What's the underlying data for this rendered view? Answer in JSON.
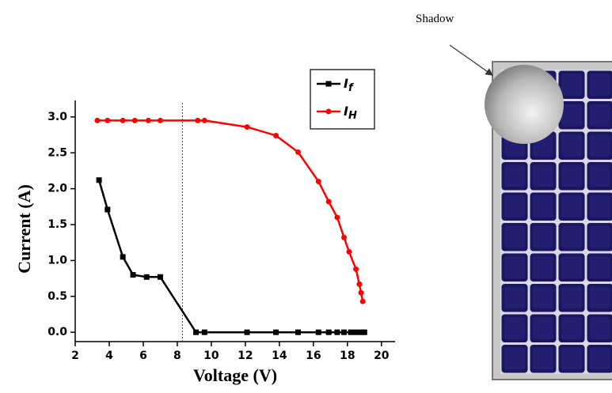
{
  "chart_data": {
    "type": "line",
    "xlabel": "Voltage (V)",
    "ylabel": "Current (A)",
    "xlim": [
      2,
      20.8
    ],
    "ylim": [
      -0.13,
      3.23
    ],
    "xticks": [
      2,
      4,
      6,
      8,
      10,
      12,
      14,
      16,
      18,
      20
    ],
    "yticks": [
      {
        "value": 0,
        "label": "0.0"
      },
      {
        "value": 0.5,
        "label": "0.5"
      },
      {
        "value": 1,
        "label": "1.0"
      },
      {
        "value": 1.5,
        "label": "1.5"
      },
      {
        "value": 2,
        "label": "2.0"
      },
      {
        "value": 2.5,
        "label": "2.5"
      },
      {
        "value": 3,
        "label": "3.0"
      }
    ],
    "reference_line_x": 8.3,
    "legend": "upper right",
    "series": [
      {
        "name": "If",
        "color": "#000000",
        "marker": "square",
        "x": [
          3.4,
          3.9,
          4.8,
          5.4,
          6.2,
          7.0,
          9.1,
          9.6,
          12.1,
          13.8,
          15.1,
          16.3,
          16.9,
          17.4,
          17.8,
          18.2,
          18.5,
          18.8,
          19.0
        ],
        "values": [
          2.12,
          1.71,
          1.05,
          0.8,
          0.77,
          0.77,
          0.0,
          0.0,
          0.0,
          0.0,
          0.0,
          0.0,
          0.0,
          0.0,
          0.0,
          0.0,
          0.0,
          0.0,
          0.0
        ]
      },
      {
        "name": "IH",
        "color": "#ff0000",
        "marker": "circle",
        "x": [
          3.3,
          3.9,
          4.8,
          5.5,
          6.3,
          7.0,
          9.2,
          9.6,
          12.1,
          13.8,
          15.1,
          16.3,
          16.9,
          17.4,
          17.8,
          18.1,
          18.5,
          18.7,
          18.8,
          18.9
        ],
        "values": [
          2.95,
          2.95,
          2.95,
          2.95,
          2.95,
          2.95,
          2.95,
          2.95,
          2.86,
          2.74,
          2.51,
          2.1,
          1.82,
          1.6,
          1.32,
          1.12,
          0.88,
          0.67,
          0.55,
          0.43
        ]
      }
    ]
  },
  "illustration": {
    "label": "Shadow"
  }
}
